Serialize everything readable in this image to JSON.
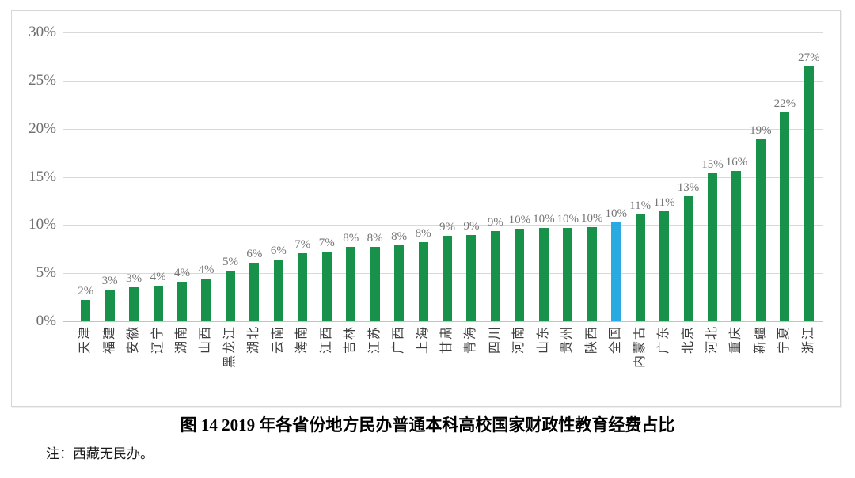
{
  "chart_data": {
    "type": "bar",
    "title": "图 14  2019 年各省份地方民办普通本科高校国家财政性教育经费占比",
    "note": "注：西藏无民办。",
    "categories": [
      "天津",
      "福建",
      "安徽",
      "辽宁",
      "湖南",
      "山西",
      "黑龙江",
      "湖北",
      "云南",
      "海南",
      "江西",
      "吉林",
      "江苏",
      "广西",
      "上海",
      "甘肃",
      "青海",
      "四川",
      "河南",
      "山东",
      "贵州",
      "陕西",
      "全国",
      "内蒙古",
      "广东",
      "北京",
      "河北",
      "重庆",
      "新疆",
      "宁夏",
      "浙江"
    ],
    "labels": [
      "2%",
      "3%",
      "3%",
      "4%",
      "4%",
      "4%",
      "5%",
      "6%",
      "6%",
      "7%",
      "7%",
      "8%",
      "8%",
      "8%",
      "8%",
      "9%",
      "9%",
      "9%",
      "10%",
      "10%",
      "10%",
      "10%",
      "10%",
      "11%",
      "11%",
      "13%",
      "15%",
      "16%",
      "19%",
      "22%",
      "27%"
    ],
    "values": [
      2.2,
      3.3,
      3.5,
      3.7,
      4.1,
      4.4,
      5.3,
      6.1,
      6.4,
      7.1,
      7.2,
      7.7,
      7.7,
      7.9,
      8.2,
      8.9,
      9.0,
      9.4,
      9.6,
      9.7,
      9.7,
      9.8,
      10.3,
      11.1,
      11.4,
      13.0,
      15.4,
      15.6,
      18.9,
      21.7,
      26.5
    ],
    "highlight_category": "全国",
    "highlight_index": 22,
    "ylim": [
      0,
      30
    ],
    "yticks": [
      "0%",
      "5%",
      "10%",
      "15%",
      "20%",
      "25%",
      "30%"
    ],
    "ytick_step": 5,
    "grid": true,
    "legend": "none",
    "bar_color": "#18914A",
    "highlight_color": "#29ABE2",
    "value_label_color": "#767676",
    "axis_label_color": "#6e6e6e"
  }
}
